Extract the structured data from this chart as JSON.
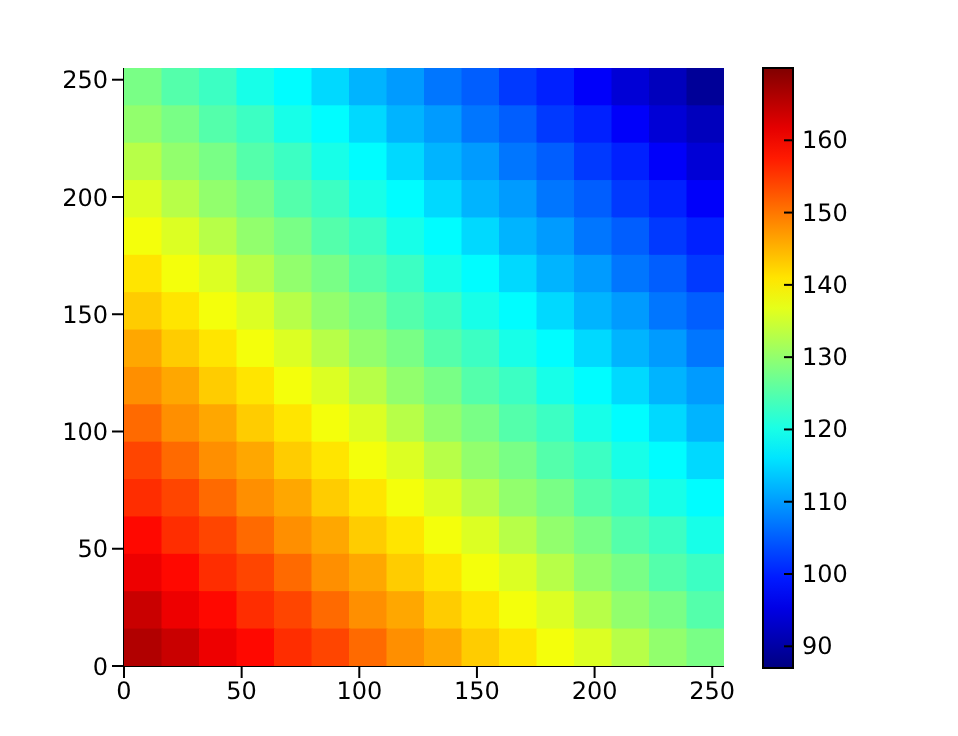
{
  "chart_data": {
    "type": "heatmap",
    "xlim": [
      0,
      255
    ],
    "xticks": [
      0,
      50,
      100,
      150,
      200,
      250
    ],
    "ylim": [
      0,
      255
    ],
    "yticks": [
      0,
      50,
      100,
      150,
      200,
      250
    ],
    "clim": [
      87,
      170
    ],
    "cticks": [
      90,
      100,
      110,
      120,
      130,
      140,
      150,
      160
    ],
    "cells": [
      [
        128,
        125,
        123,
        120,
        118,
        115,
        112,
        110,
        107,
        105,
        102,
        100,
        97,
        94,
        92,
        89
      ],
      [
        130,
        128,
        125,
        123,
        120,
        118,
        115,
        112,
        110,
        107,
        105,
        102,
        100,
        97,
        94,
        92
      ],
      [
        133,
        130,
        128,
        125,
        123,
        120,
        118,
        115,
        112,
        110,
        107,
        105,
        102,
        100,
        97,
        94
      ],
      [
        136,
        133,
        130,
        128,
        125,
        123,
        120,
        118,
        115,
        112,
        110,
        107,
        105,
        102,
        100,
        97
      ],
      [
        138,
        136,
        133,
        130,
        128,
        125,
        123,
        120,
        118,
        115,
        112,
        110,
        107,
        105,
        102,
        100
      ],
      [
        141,
        138,
        136,
        133,
        130,
        128,
        125,
        123,
        120,
        118,
        115,
        112,
        110,
        107,
        105,
        102
      ],
      [
        143,
        141,
        138,
        136,
        133,
        130,
        128,
        125,
        123,
        120,
        118,
        115,
        112,
        110,
        107,
        105
      ],
      [
        146,
        143,
        141,
        138,
        136,
        133,
        130,
        128,
        125,
        123,
        120,
        118,
        115,
        112,
        110,
        107
      ],
      [
        148,
        146,
        143,
        141,
        138,
        136,
        133,
        130,
        128,
        125,
        123,
        120,
        118,
        115,
        112,
        110
      ],
      [
        151,
        148,
        146,
        143,
        141,
        138,
        136,
        133,
        130,
        128,
        125,
        123,
        120,
        118,
        115,
        112
      ],
      [
        154,
        151,
        148,
        146,
        143,
        141,
        138,
        136,
        133,
        130,
        128,
        125,
        123,
        120,
        118,
        115
      ],
      [
        156,
        154,
        151,
        148,
        146,
        143,
        141,
        138,
        136,
        133,
        130,
        128,
        125,
        123,
        120,
        118
      ],
      [
        159,
        156,
        154,
        151,
        148,
        146,
        143,
        141,
        138,
        136,
        133,
        130,
        128,
        125,
        123,
        120
      ],
      [
        161,
        159,
        156,
        154,
        151,
        148,
        146,
        143,
        141,
        138,
        136,
        133,
        130,
        128,
        125,
        123
      ],
      [
        164,
        161,
        159,
        156,
        154,
        151,
        148,
        146,
        143,
        141,
        138,
        136,
        133,
        130,
        128,
        125
      ],
      [
        166,
        164,
        161,
        159,
        156,
        154,
        151,
        148,
        146,
        143,
        141,
        138,
        136,
        133,
        130,
        128
      ]
    ]
  }
}
